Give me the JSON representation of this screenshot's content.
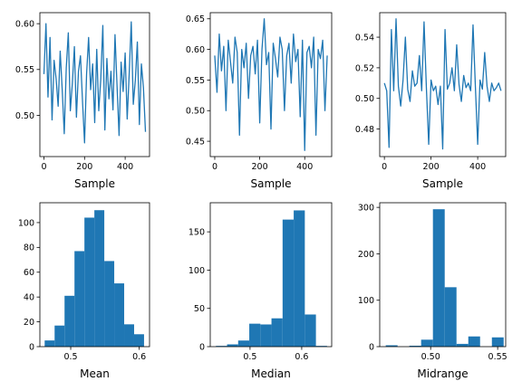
{
  "colors": {
    "series": "#1f77b4",
    "axes": "#000000",
    "background": "#ffffff"
  },
  "chart_data": [
    {
      "type": "line",
      "xlabel": "Sample",
      "ylabel": "",
      "xlim": [
        -20,
        520
      ],
      "ylim": [
        0.455,
        0.612
      ],
      "xticks": [
        0,
        200,
        400
      ],
      "xtick_labels": [
        "0",
        "200",
        "400"
      ],
      "yticks": [
        0.5,
        0.55,
        0.6
      ],
      "ytick_labels": [
        "0.50",
        "0.55",
        "0.60"
      ],
      "series": [
        {
          "name": "",
          "x_start": 0,
          "x_step": 10,
          "values": [
            0.545,
            0.6,
            0.52,
            0.585,
            0.495,
            0.56,
            0.54,
            0.51,
            0.57,
            0.528,
            0.48,
            0.552,
            0.59,
            0.505,
            0.535,
            0.575,
            0.498,
            0.548,
            0.565,
            0.515,
            0.47,
            0.545,
            0.585,
            0.528,
            0.556,
            0.492,
            0.572,
            0.505,
            0.54,
            0.598,
            0.484,
            0.562,
            0.518,
            0.548,
            0.506,
            0.588,
            0.532,
            0.478,
            0.558,
            0.526,
            0.568,
            0.496,
            0.546,
            0.602,
            0.512,
            0.538,
            0.58,
            0.49,
            0.556,
            0.53,
            0.482
          ]
        }
      ]
    },
    {
      "type": "line",
      "xlabel": "Sample",
      "ylabel": "",
      "xlim": [
        -20,
        520
      ],
      "ylim": [
        0.425,
        0.66
      ],
      "xticks": [
        0,
        200,
        400
      ],
      "xtick_labels": [
        "0",
        "200",
        "400"
      ],
      "yticks": [
        0.45,
        0.5,
        0.55,
        0.6,
        0.65
      ],
      "ytick_labels": [
        "0.45",
        "0.50",
        "0.55",
        "0.60",
        "0.65"
      ],
      "series": [
        {
          "name": "",
          "x_start": 0,
          "x_step": 10,
          "values": [
            0.59,
            0.53,
            0.625,
            0.565,
            0.605,
            0.5,
            0.615,
            0.58,
            0.545,
            0.62,
            0.595,
            0.46,
            0.6,
            0.57,
            0.61,
            0.52,
            0.59,
            0.605,
            0.56,
            0.615,
            0.48,
            0.6,
            0.65,
            0.575,
            0.595,
            0.47,
            0.61,
            0.585,
            0.555,
            0.62,
            0.6,
            0.5,
            0.59,
            0.61,
            0.545,
            0.625,
            0.58,
            0.6,
            0.49,
            0.615,
            0.435,
            0.595,
            0.605,
            0.57,
            0.62,
            0.46,
            0.6,
            0.585,
            0.615,
            0.5,
            0.59
          ]
        }
      ]
    },
    {
      "type": "line",
      "xlabel": "Sample",
      "ylabel": "",
      "xlim": [
        -20,
        520
      ],
      "ylim": [
        0.462,
        0.556
      ],
      "xticks": [
        0,
        200,
        400
      ],
      "xtick_labels": [
        "0",
        "200",
        "400"
      ],
      "yticks": [
        0.48,
        0.5,
        0.52,
        0.54
      ],
      "ytick_labels": [
        "0.48",
        "0.50",
        "0.52",
        "0.54"
      ],
      "series": [
        {
          "name": "",
          "x_start": 0,
          "x_step": 10,
          "values": [
            0.51,
            0.505,
            0.468,
            0.545,
            0.505,
            0.552,
            0.508,
            0.495,
            0.512,
            0.54,
            0.506,
            0.498,
            0.518,
            0.508,
            0.51,
            0.528,
            0.505,
            0.55,
            0.507,
            0.47,
            0.512,
            0.505,
            0.508,
            0.496,
            0.508,
            0.467,
            0.545,
            0.506,
            0.51,
            0.52,
            0.505,
            0.535,
            0.509,
            0.498,
            0.515,
            0.507,
            0.51,
            0.505,
            0.548,
            0.508,
            0.47,
            0.512,
            0.506,
            0.53,
            0.508,
            0.498,
            0.51,
            0.505,
            0.507,
            0.51,
            0.505
          ]
        }
      ]
    },
    {
      "type": "bar",
      "subtype": "histogram",
      "xlabel": "Mean",
      "ylabel": "",
      "xlim": [
        0.455,
        0.615
      ],
      "ylim": [
        0,
        116
      ],
      "xticks": [
        0.5,
        0.6
      ],
      "xtick_labels": [
        "0.5",
        "0.6"
      ],
      "yticks": [
        0,
        20,
        40,
        60,
        80,
        100
      ],
      "ytick_labels": [
        "0",
        "20",
        "40",
        "60",
        "80",
        "100"
      ],
      "bin_edges": [
        0.462,
        0.4765,
        0.491,
        0.5055,
        0.52,
        0.5345,
        0.549,
        0.5635,
        0.578,
        0.5925,
        0.607
      ],
      "values": [
        5,
        17,
        41,
        77,
        104,
        110,
        69,
        51,
        18,
        10
      ]
    },
    {
      "type": "bar",
      "subtype": "histogram",
      "xlabel": "Median",
      "ylabel": "",
      "xlim": [
        0.423,
        0.658
      ],
      "ylim": [
        0,
        188
      ],
      "xticks": [
        0.5,
        0.6
      ],
      "xtick_labels": [
        "0.5",
        "0.6"
      ],
      "yticks": [
        0,
        50,
        100,
        150
      ],
      "ytick_labels": [
        "0",
        "50",
        "100",
        "150"
      ],
      "bin_edges": [
        0.434,
        0.4555,
        0.477,
        0.4985,
        0.52,
        0.5415,
        0.563,
        0.5845,
        0.606,
        0.6275,
        0.649
      ],
      "values": [
        1,
        3,
        8,
        30,
        29,
        37,
        166,
        178,
        42,
        1
      ]
    },
    {
      "type": "bar",
      "subtype": "histogram",
      "xlabel": "Midrange",
      "ylabel": "",
      "xlim": [
        0.462,
        0.556
      ],
      "ylim": [
        0,
        310
      ],
      "xticks": [
        0.5,
        0.55
      ],
      "xtick_labels": [
        "0.50",
        "0.55"
      ],
      "yticks": [
        0,
        100,
        200,
        300
      ],
      "ytick_labels": [
        "0",
        "100",
        "200",
        "300"
      ],
      "bin_edges": [
        0.4665,
        0.4753,
        0.4841,
        0.4929,
        0.5017,
        0.5105,
        0.5193,
        0.5281,
        0.5369,
        0.5457,
        0.5545
      ],
      "values": [
        3,
        0,
        2,
        15,
        296,
        128,
        6,
        22,
        0,
        20
      ]
    }
  ]
}
